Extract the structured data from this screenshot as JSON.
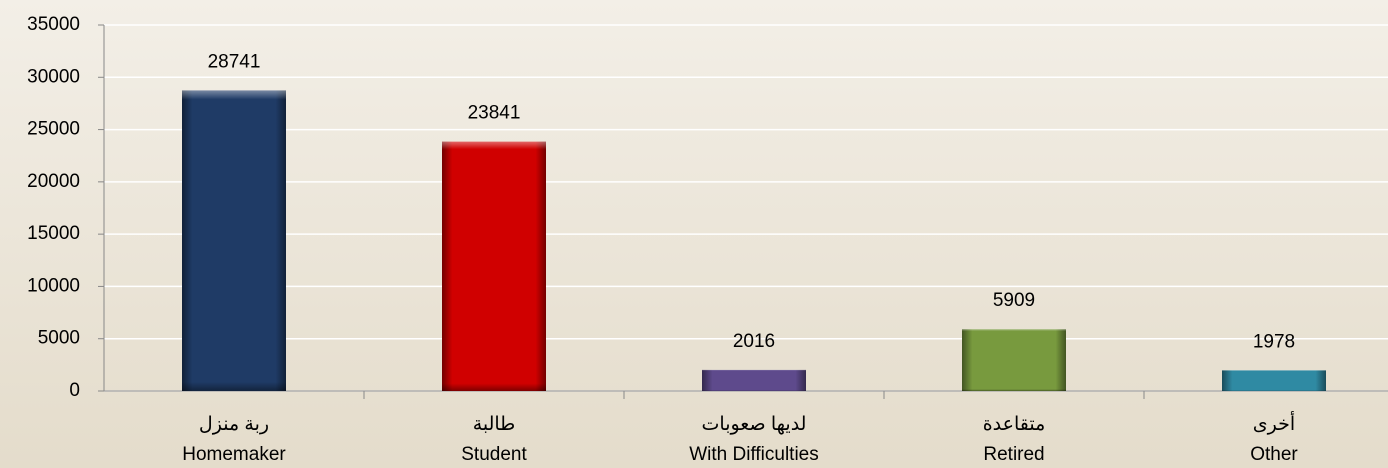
{
  "chart_data": {
    "type": "bar",
    "categories": [
      [
        "ربة منزل",
        "Homemaker"
      ],
      [
        "طالبة",
        "Student"
      ],
      [
        "لديها صعوبات",
        "With Difficulties"
      ],
      [
        "متقاعدة",
        "Retired"
      ],
      [
        "أخرى",
        "Other"
      ]
    ],
    "values": [
      28741,
      23841,
      2016,
      5909,
      1978
    ],
    "colors": [
      "#1f3b66",
      "#d00000",
      "#5e4a8c",
      "#789a3e",
      "#2f8aa3"
    ],
    "ylim": [
      0,
      35000
    ],
    "yticks": [
      0,
      5000,
      10000,
      15000,
      20000,
      25000,
      30000,
      35000
    ],
    "grid": true
  }
}
